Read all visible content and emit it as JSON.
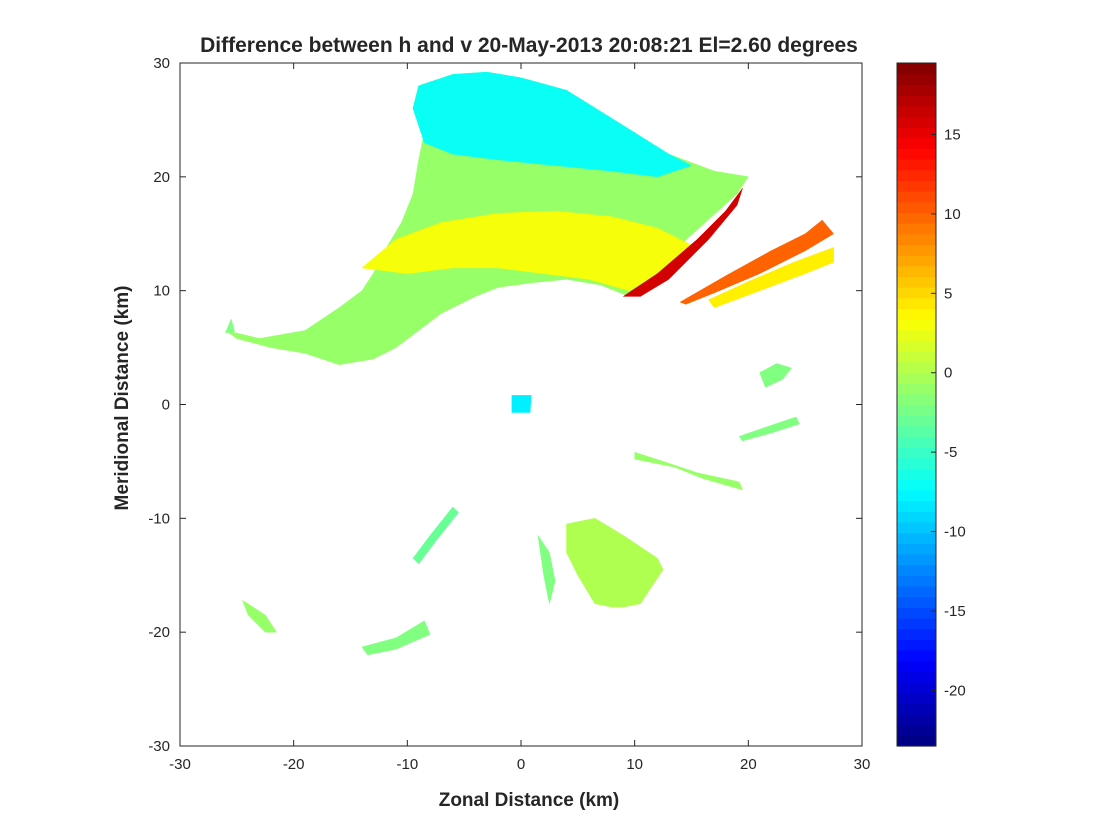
{
  "chart_data": {
    "type": "heatmap",
    "title": "Difference between h and v 20-May-2013 20:08:21 El=2.60 degrees",
    "xlabel": "Zonal Distance (km)",
    "ylabel": "Meridional Distance (km)",
    "xlim": [
      -30,
      30
    ],
    "ylim": [
      -30,
      30
    ],
    "xticks": [
      -30,
      -20,
      -10,
      0,
      10,
      20,
      30
    ],
    "yticks": [
      -30,
      -20,
      -10,
      0,
      10,
      20,
      30
    ],
    "colorbar": {
      "colormap": "jet",
      "clim": [
        -23.5,
        19.5
      ],
      "ticks": [
        -20,
        -15,
        -10,
        -5,
        0,
        5,
        10,
        15
      ]
    },
    "regions": [
      {
        "name": "main-echo",
        "typical_value": -1,
        "polygon": [
          [
            -26,
            6.5
          ],
          [
            -23,
            5.8
          ],
          [
            -19,
            6.5
          ],
          [
            -16,
            8.5
          ],
          [
            -14,
            10
          ],
          [
            -13,
            11.5
          ],
          [
            -12,
            13.5
          ],
          [
            -10.5,
            16
          ],
          [
            -9.5,
            18.5
          ],
          [
            -9,
            21.5
          ],
          [
            -8.5,
            24
          ],
          [
            -9.5,
            26
          ],
          [
            -9,
            28
          ],
          [
            -6,
            29
          ],
          [
            -3,
            29.2
          ],
          [
            0,
            28.7
          ],
          [
            4,
            27.6
          ],
          [
            9,
            24.5
          ],
          [
            13,
            22
          ],
          [
            17,
            20.5
          ],
          [
            20,
            20
          ],
          [
            19,
            18.5
          ],
          [
            14,
            14
          ],
          [
            9.5,
            9.5
          ],
          [
            7,
            10.5
          ],
          [
            4,
            11
          ],
          [
            1,
            10.7
          ],
          [
            -2,
            10.3
          ],
          [
            -4,
            9.5
          ],
          [
            -7,
            8
          ],
          [
            -9,
            6.5
          ],
          [
            -11,
            5
          ],
          [
            -13,
            4
          ],
          [
            -16,
            3.5
          ],
          [
            -19,
            4.5
          ],
          [
            -22,
            5
          ],
          [
            -25,
            5.8
          ]
        ]
      },
      {
        "name": "cyan-top",
        "typical_value": -7,
        "polygon": [
          [
            -9.5,
            26
          ],
          [
            -9,
            28
          ],
          [
            -6,
            29
          ],
          [
            -3,
            29.2
          ],
          [
            0,
            28.7
          ],
          [
            4,
            27.6
          ],
          [
            9,
            24.5
          ],
          [
            13,
            22
          ],
          [
            15,
            21
          ],
          [
            12,
            20
          ],
          [
            8,
            20.5
          ],
          [
            3,
            21
          ],
          [
            -2,
            21.5
          ],
          [
            -6,
            22
          ],
          [
            -8.5,
            23
          ]
        ]
      },
      {
        "name": "yellow-band",
        "typical_value": 3,
        "polygon": [
          [
            -14,
            12
          ],
          [
            -11,
            14.5
          ],
          [
            -7,
            16
          ],
          [
            -2,
            16.8
          ],
          [
            3,
            17
          ],
          [
            8,
            16.5
          ],
          [
            12,
            15.5
          ],
          [
            15,
            14
          ],
          [
            13,
            12
          ],
          [
            9.5,
            10
          ],
          [
            6,
            11
          ],
          [
            2,
            11.5
          ],
          [
            -2,
            12
          ],
          [
            -6,
            12
          ],
          [
            -10,
            11.5
          ]
        ]
      },
      {
        "name": "red-ray-1",
        "typical_value": 16,
        "polygon": [
          [
            9,
            9.5
          ],
          [
            12,
            11.5
          ],
          [
            15.5,
            14.5
          ],
          [
            18,
            17
          ],
          [
            19.5,
            19
          ],
          [
            19,
            17.5
          ],
          [
            16.5,
            14.5
          ],
          [
            13,
            11
          ],
          [
            10.5,
            9.5
          ]
        ]
      },
      {
        "name": "orange-ray-2",
        "typical_value": 10,
        "polygon": [
          [
            14,
            9
          ],
          [
            18,
            11.3
          ],
          [
            22,
            13.5
          ],
          [
            25,
            15
          ],
          [
            26.5,
            16.2
          ],
          [
            27.5,
            15
          ],
          [
            25,
            13.5
          ],
          [
            21,
            11.5
          ],
          [
            17,
            9.8
          ],
          [
            14.5,
            8.8
          ]
        ]
      },
      {
        "name": "yellow-ray-2-edge",
        "typical_value": 4,
        "polygon": [
          [
            17,
            8.5
          ],
          [
            21,
            10
          ],
          [
            25,
            11.5
          ],
          [
            27.5,
            12.5
          ],
          [
            27.5,
            13.8
          ],
          [
            24,
            12.5
          ],
          [
            20,
            10.8
          ],
          [
            16.5,
            9.2
          ]
        ]
      },
      {
        "name": "echo-east",
        "typical_value": -2,
        "polygon": [
          [
            21.5,
            1.5
          ],
          [
            23,
            2.2
          ],
          [
            23.8,
            3.2
          ],
          [
            22.5,
            3.6
          ],
          [
            21,
            2.8
          ]
        ]
      },
      {
        "name": "echo-streak-east",
        "typical_value": -2,
        "polygon": [
          [
            19.5,
            -3.2
          ],
          [
            22,
            -2.5
          ],
          [
            24.5,
            -1.7
          ],
          [
            24.2,
            -1.1
          ],
          [
            21.5,
            -2
          ],
          [
            19.2,
            -2.8
          ]
        ]
      },
      {
        "name": "echo-streak-mid",
        "typical_value": -1,
        "polygon": [
          [
            10,
            -4.8
          ],
          [
            13.5,
            -5.5
          ],
          [
            16,
            -6.5
          ],
          [
            19.5,
            -7.5
          ],
          [
            19.2,
            -6.8
          ],
          [
            15.5,
            -6
          ],
          [
            12.5,
            -5
          ],
          [
            10,
            -4.2
          ]
        ]
      },
      {
        "name": "echo-south-a",
        "typical_value": -3,
        "polygon": [
          [
            -9.5,
            -13.5
          ],
          [
            -8,
            -11.5
          ],
          [
            -6,
            -9
          ],
          [
            -5.5,
            -9.5
          ],
          [
            -7.5,
            -12
          ],
          [
            -9,
            -14
          ]
        ]
      },
      {
        "name": "echo-south-b",
        "typical_value": -2,
        "polygon": [
          [
            1.5,
            -11.5
          ],
          [
            2.5,
            -13
          ],
          [
            3,
            -15.5
          ],
          [
            2.5,
            -17.5
          ],
          [
            2,
            -15
          ]
        ]
      },
      {
        "name": "echo-south-c",
        "typical_value": 0,
        "polygon": [
          [
            4,
            -10.5
          ],
          [
            6.5,
            -10
          ],
          [
            9,
            -11.5
          ],
          [
            12,
            -13.5
          ],
          [
            12.5,
            -14.5
          ],
          [
            11.5,
            -16
          ],
          [
            10.5,
            -17.5
          ],
          [
            9,
            -17.8
          ],
          [
            8,
            -17.8
          ],
          [
            6.5,
            -17.5
          ],
          [
            5,
            -15
          ],
          [
            4,
            -13
          ]
        ]
      },
      {
        "name": "echo-southwest",
        "typical_value": -1,
        "polygon": [
          [
            -24.5,
            -17.2
          ],
          [
            -22.5,
            -18.5
          ],
          [
            -21.5,
            -20
          ],
          [
            -22.5,
            -20
          ],
          [
            -24,
            -18.5
          ]
        ]
      },
      {
        "name": "echo-south-d",
        "typical_value": -2,
        "polygon": [
          [
            -14,
            -21.3
          ],
          [
            -11,
            -20.5
          ],
          [
            -8.5,
            -19
          ],
          [
            -8,
            -20.2
          ],
          [
            -11,
            -21.5
          ],
          [
            -13.5,
            -22
          ]
        ]
      },
      {
        "name": "echo-center",
        "typical_value": -8,
        "polygon": [
          [
            -0.8,
            -0.7
          ],
          [
            0.8,
            -0.7
          ],
          [
            0.9,
            0.8
          ],
          [
            -0.8,
            0.8
          ]
        ]
      },
      {
        "name": "echo-west-speck",
        "typical_value": -2,
        "polygon": [
          [
            -26,
            6.3
          ],
          [
            -25.5,
            7.5
          ],
          [
            -25.2,
            6.4
          ]
        ]
      }
    ]
  }
}
